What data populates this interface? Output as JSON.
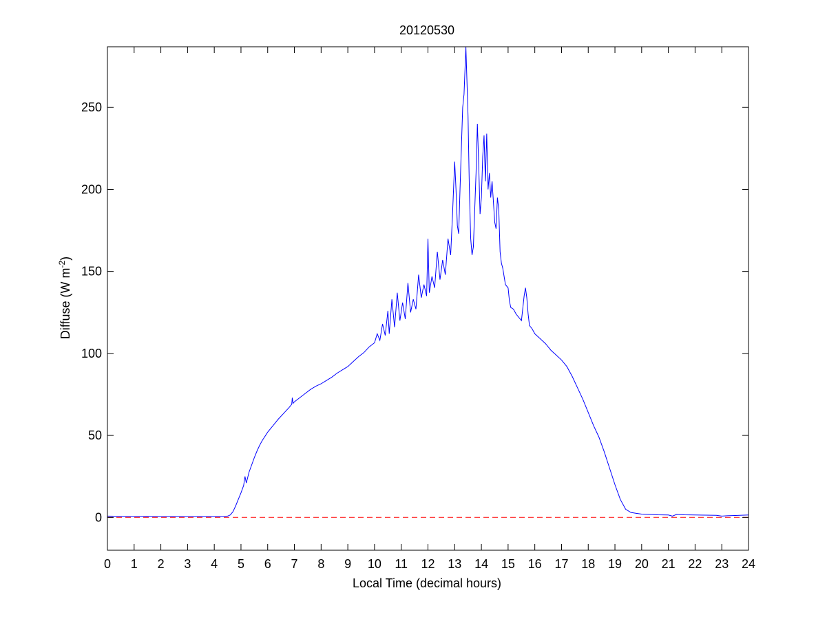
{
  "chart_data": {
    "type": "line",
    "title": "20120530",
    "xlabel": "Local Time (decimal hours)",
    "ylabel_main": "Diffuse (W m",
    "ylabel_sup": "-2",
    "ylabel_close": ")",
    "xlim": [
      0,
      24
    ],
    "ylim": [
      -20,
      287
    ],
    "xticks": [
      "0",
      "1",
      "2",
      "3",
      "4",
      "5",
      "6",
      "7",
      "8",
      "9",
      "10",
      "11",
      "12",
      "13",
      "14",
      "15",
      "16",
      "17",
      "18",
      "19",
      "20",
      "21",
      "22",
      "23",
      "24"
    ],
    "yticks": [
      "0",
      "50",
      "100",
      "150",
      "200",
      "250"
    ],
    "grid": false,
    "colors": {
      "series": "#0000ff",
      "reference": "#ff0000",
      "axes": "#000000"
    },
    "series": [
      {
        "style": "solid",
        "points": [
          [
            0.0,
            0.8
          ],
          [
            0.5,
            0.7
          ],
          [
            1.0,
            0.6
          ],
          [
            1.5,
            0.7
          ],
          [
            2.0,
            0.5
          ],
          [
            2.5,
            0.6
          ],
          [
            3.0,
            0.5
          ],
          [
            3.5,
            0.6
          ],
          [
            4.0,
            0.6
          ],
          [
            4.3,
            0.6
          ],
          [
            4.5,
            0.8
          ],
          [
            4.6,
            1.5
          ],
          [
            4.7,
            3.5
          ],
          [
            4.8,
            7.0
          ],
          [
            4.9,
            11.0
          ],
          [
            5.0,
            15.0
          ],
          [
            5.1,
            19.5
          ],
          [
            5.15,
            25.0
          ],
          [
            5.2,
            21.0
          ],
          [
            5.3,
            27.5
          ],
          [
            5.4,
            32.0
          ],
          [
            5.5,
            36.5
          ],
          [
            5.6,
            40.5
          ],
          [
            5.7,
            44.0
          ],
          [
            5.8,
            47.0
          ],
          [
            5.9,
            49.5
          ],
          [
            6.0,
            52.0
          ],
          [
            6.2,
            56.0
          ],
          [
            6.4,
            60.0
          ],
          [
            6.6,
            63.5
          ],
          [
            6.8,
            67.0
          ],
          [
            6.9,
            69.0
          ],
          [
            6.92,
            73.0
          ],
          [
            6.95,
            69.5
          ],
          [
            7.0,
            70.5
          ],
          [
            7.2,
            73.0
          ],
          [
            7.4,
            75.5
          ],
          [
            7.6,
            78.0
          ],
          [
            7.8,
            80.0
          ],
          [
            8.0,
            81.5
          ],
          [
            8.2,
            83.5
          ],
          [
            8.4,
            85.5
          ],
          [
            8.6,
            88.0
          ],
          [
            8.8,
            90.0
          ],
          [
            9.0,
            92.0
          ],
          [
            9.2,
            95.0
          ],
          [
            9.4,
            98.0
          ],
          [
            9.6,
            100.5
          ],
          [
            9.8,
            104.0
          ],
          [
            10.0,
            106.5
          ],
          [
            10.1,
            112.0
          ],
          [
            10.2,
            108.0
          ],
          [
            10.3,
            118.0
          ],
          [
            10.4,
            111.0
          ],
          [
            10.5,
            126.0
          ],
          [
            10.55,
            112.0
          ],
          [
            10.65,
            133.0
          ],
          [
            10.75,
            116.0
          ],
          [
            10.85,
            137.0
          ],
          [
            10.95,
            120.0
          ],
          [
            11.05,
            131.0
          ],
          [
            11.15,
            121.0
          ],
          [
            11.25,
            143.0
          ],
          [
            11.35,
            125.0
          ],
          [
            11.45,
            133.0
          ],
          [
            11.55,
            127.0
          ],
          [
            11.65,
            148.0
          ],
          [
            11.75,
            134.0
          ],
          [
            11.85,
            142.0
          ],
          [
            11.95,
            135.0
          ],
          [
            12.0,
            170.0
          ],
          [
            12.05,
            137.0
          ],
          [
            12.15,
            147.0
          ],
          [
            12.25,
            140.0
          ],
          [
            12.35,
            162.0
          ],
          [
            12.45,
            145.0
          ],
          [
            12.55,
            157.0
          ],
          [
            12.65,
            148.0
          ],
          [
            12.75,
            170.0
          ],
          [
            12.85,
            160.0
          ],
          [
            12.92,
            185.0
          ],
          [
            13.0,
            217.0
          ],
          [
            13.05,
            200.0
          ],
          [
            13.1,
            178.0
          ],
          [
            13.15,
            173.0
          ],
          [
            13.2,
            200.0
          ],
          [
            13.3,
            250.0
          ],
          [
            13.35,
            258.0
          ],
          [
            13.42,
            287.0
          ],
          [
            13.5,
            245.0
          ],
          [
            13.55,
            200.0
          ],
          [
            13.6,
            170.0
          ],
          [
            13.65,
            160.0
          ],
          [
            13.7,
            165.0
          ],
          [
            13.8,
            210.0
          ],
          [
            13.85,
            240.0
          ],
          [
            13.9,
            215.0
          ],
          [
            13.95,
            185.0
          ],
          [
            14.0,
            195.0
          ],
          [
            14.05,
            220.0
          ],
          [
            14.1,
            233.0
          ],
          [
            14.15,
            205.0
          ],
          [
            14.2,
            234.0
          ],
          [
            14.25,
            200.0
          ],
          [
            14.3,
            210.0
          ],
          [
            14.35,
            195.0
          ],
          [
            14.4,
            205.0
          ],
          [
            14.5,
            180.0
          ],
          [
            14.55,
            176.0
          ],
          [
            14.6,
            195.0
          ],
          [
            14.65,
            188.0
          ],
          [
            14.7,
            162.0
          ],
          [
            14.75,
            155.0
          ],
          [
            14.8,
            152.0
          ],
          [
            14.9,
            142.0
          ],
          [
            15.0,
            140.0
          ],
          [
            15.05,
            132.0
          ],
          [
            15.1,
            128.0
          ],
          [
            15.2,
            127.0
          ],
          [
            15.3,
            124.0
          ],
          [
            15.4,
            122.0
          ],
          [
            15.5,
            120.0
          ],
          [
            15.6,
            135.0
          ],
          [
            15.65,
            140.0
          ],
          [
            15.7,
            134.0
          ],
          [
            15.75,
            124.0
          ],
          [
            15.8,
            117.0
          ],
          [
            15.9,
            115.0
          ],
          [
            16.0,
            112.0
          ],
          [
            16.2,
            109.0
          ],
          [
            16.4,
            106.0
          ],
          [
            16.6,
            102.0
          ],
          [
            16.8,
            99.0
          ],
          [
            17.0,
            96.0
          ],
          [
            17.2,
            92.0
          ],
          [
            17.4,
            86.0
          ],
          [
            17.6,
            79.0
          ],
          [
            17.8,
            72.0
          ],
          [
            18.0,
            64.0
          ],
          [
            18.2,
            56.0
          ],
          [
            18.4,
            49.0
          ],
          [
            18.6,
            40.0
          ],
          [
            18.8,
            30.0
          ],
          [
            19.0,
            20.0
          ],
          [
            19.2,
            11.0
          ],
          [
            19.4,
            5.0
          ],
          [
            19.6,
            3.0
          ],
          [
            19.8,
            2.5
          ],
          [
            20.0,
            2.0
          ],
          [
            20.3,
            1.8
          ],
          [
            20.6,
            1.6
          ],
          [
            21.0,
            1.5
          ],
          [
            21.15,
            0.8
          ],
          [
            21.3,
            1.8
          ],
          [
            21.6,
            1.6
          ],
          [
            22.0,
            1.5
          ],
          [
            22.4,
            1.4
          ],
          [
            22.8,
            1.3
          ],
          [
            23.0,
            0.8
          ],
          [
            23.2,
            1.0
          ],
          [
            23.5,
            1.2
          ],
          [
            24.0,
            1.5
          ]
        ]
      },
      {
        "style": "dashed",
        "points": [
          [
            0,
            0
          ],
          [
            24,
            0
          ]
        ]
      }
    ]
  }
}
